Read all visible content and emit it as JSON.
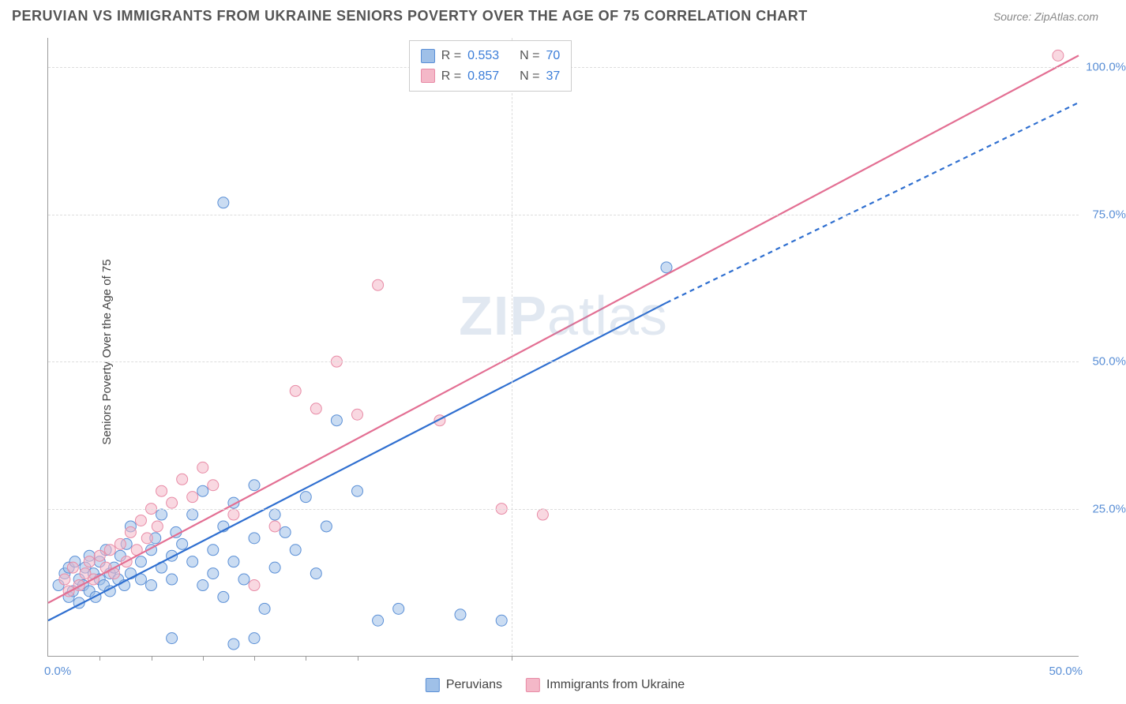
{
  "title": "PERUVIAN VS IMMIGRANTS FROM UKRAINE SENIORS POVERTY OVER THE AGE OF 75 CORRELATION CHART",
  "source": "Source: ZipAtlas.com",
  "ylabel": "Seniors Poverty Over the Age of 75",
  "watermark_bold": "ZIP",
  "watermark_rest": "atlas",
  "chart": {
    "type": "scatter",
    "xlim": [
      0,
      50
    ],
    "ylim": [
      0,
      105
    ],
    "y_gridlines": [
      25,
      50,
      75,
      100
    ],
    "y_tick_labels": [
      "25.0%",
      "50.0%",
      "75.0%",
      "100.0%"
    ],
    "x_tick_left": "0.0%",
    "x_tick_right": "50.0%",
    "x_minor_ticks": [
      2.5,
      5,
      7.5,
      10,
      12.5,
      15,
      22.5
    ],
    "background_color": "#ffffff",
    "grid_color": "#dddddd",
    "axis_color": "#999999",
    "tick_label_color": "#5a8fd6",
    "marker_radius": 7,
    "marker_opacity": 0.55,
    "line_width": 2.2
  },
  "series": {
    "blue": {
      "name": "Peruvians",
      "R": "0.553",
      "N": "70",
      "fill": "#9fc0e8",
      "stroke": "#5a8fd6",
      "line_color": "#2f6fd0",
      "trend_solid": {
        "x1": 0,
        "y1": 6,
        "x2": 30,
        "y2": 60
      },
      "trend_dash": {
        "x1": 30,
        "y1": 60,
        "x2": 50,
        "y2": 94
      },
      "points": [
        [
          0.5,
          12
        ],
        [
          0.8,
          14
        ],
        [
          1,
          10
        ],
        [
          1,
          15
        ],
        [
          1.2,
          11
        ],
        [
          1.3,
          16
        ],
        [
          1.5,
          9
        ],
        [
          1.5,
          13
        ],
        [
          1.7,
          12
        ],
        [
          1.8,
          15
        ],
        [
          2,
          11
        ],
        [
          2,
          17
        ],
        [
          2.2,
          14
        ],
        [
          2.3,
          10
        ],
        [
          2.5,
          13
        ],
        [
          2.5,
          16
        ],
        [
          2.7,
          12
        ],
        [
          2.8,
          18
        ],
        [
          3,
          14
        ],
        [
          3,
          11
        ],
        [
          3.2,
          15
        ],
        [
          3.4,
          13
        ],
        [
          3.5,
          17
        ],
        [
          3.7,
          12
        ],
        [
          3.8,
          19
        ],
        [
          4,
          14
        ],
        [
          4,
          22
        ],
        [
          4.5,
          16
        ],
        [
          4.5,
          13
        ],
        [
          5,
          18
        ],
        [
          5,
          12
        ],
        [
          5.2,
          20
        ],
        [
          5.5,
          15
        ],
        [
          5.5,
          24
        ],
        [
          6,
          17
        ],
        [
          6,
          13
        ],
        [
          6.2,
          21
        ],
        [
          6.5,
          19
        ],
        [
          7,
          16
        ],
        [
          7,
          24
        ],
        [
          7.5,
          12
        ],
        [
          7.5,
          28
        ],
        [
          8,
          18
        ],
        [
          8,
          14
        ],
        [
          8.5,
          22
        ],
        [
          8.5,
          10
        ],
        [
          9,
          26
        ],
        [
          9,
          16
        ],
        [
          9.5,
          13
        ],
        [
          10,
          20
        ],
        [
          10,
          29
        ],
        [
          10.5,
          8
        ],
        [
          11,
          15
        ],
        [
          11,
          24
        ],
        [
          11.5,
          21
        ],
        [
          12,
          18
        ],
        [
          12.5,
          27
        ],
        [
          13,
          14
        ],
        [
          13.5,
          22
        ],
        [
          14,
          40
        ],
        [
          15,
          28
        ],
        [
          16,
          6
        ],
        [
          17,
          8
        ],
        [
          20,
          7
        ],
        [
          22,
          6
        ],
        [
          30,
          66
        ],
        [
          8.5,
          77
        ],
        [
          6,
          3
        ],
        [
          9,
          2
        ],
        [
          10,
          3
        ]
      ]
    },
    "pink": {
      "name": "Immigrants from Ukraine",
      "R": "0.857",
      "N": "37",
      "fill": "#f4b8c8",
      "stroke": "#e88ba6",
      "line_color": "#e36f93",
      "trend_solid": {
        "x1": 0,
        "y1": 9,
        "x2": 50,
        "y2": 102
      },
      "points": [
        [
          0.8,
          13
        ],
        [
          1,
          11
        ],
        [
          1.2,
          15
        ],
        [
          1.5,
          12
        ],
        [
          1.8,
          14
        ],
        [
          2,
          16
        ],
        [
          2.2,
          13
        ],
        [
          2.5,
          17
        ],
        [
          2.8,
          15
        ],
        [
          3,
          18
        ],
        [
          3.2,
          14
        ],
        [
          3.5,
          19
        ],
        [
          3.8,
          16
        ],
        [
          4,
          21
        ],
        [
          4.3,
          18
        ],
        [
          4.5,
          23
        ],
        [
          4.8,
          20
        ],
        [
          5,
          25
        ],
        [
          5.3,
          22
        ],
        [
          5.5,
          28
        ],
        [
          6,
          26
        ],
        [
          6.5,
          30
        ],
        [
          7,
          27
        ],
        [
          7.5,
          32
        ],
        [
          8,
          29
        ],
        [
          9,
          24
        ],
        [
          10,
          12
        ],
        [
          11,
          22
        ],
        [
          12,
          45
        ],
        [
          13,
          42
        ],
        [
          14,
          50
        ],
        [
          15,
          41
        ],
        [
          16,
          63
        ],
        [
          19,
          40
        ],
        [
          22,
          25
        ],
        [
          24,
          24
        ],
        [
          49,
          102
        ]
      ]
    }
  },
  "legend_top": [
    {
      "swatch_fill": "#9fc0e8",
      "swatch_stroke": "#5a8fd6",
      "r_label": "R =",
      "r_val": "0.553",
      "n_label": "N =",
      "n_val": "70"
    },
    {
      "swatch_fill": "#f4b8c8",
      "swatch_stroke": "#e88ba6",
      "r_label": "R =",
      "r_val": "0.857",
      "n_label": "N =",
      "n_val": "37"
    }
  ],
  "legend_bottom": [
    {
      "swatch_fill": "#9fc0e8",
      "swatch_stroke": "#5a8fd6",
      "label": "Peruvians"
    },
    {
      "swatch_fill": "#f4b8c8",
      "swatch_stroke": "#e88ba6",
      "label": "Immigrants from Ukraine"
    }
  ]
}
